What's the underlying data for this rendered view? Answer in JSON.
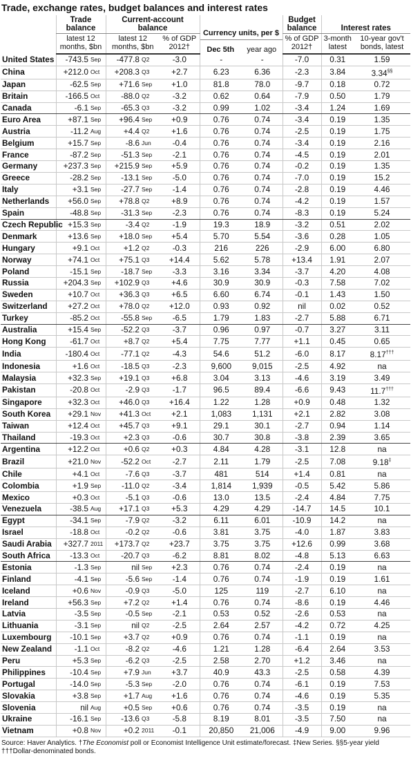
{
  "title": "Trade, exchange rates, budget balances and interest rates",
  "header": {
    "trade": "Trade balance",
    "trade_sub": "latest 12 months, $bn",
    "ca": "Current-account balance",
    "ca_sub": "latest 12 months, $bn",
    "ca_gdp": "% of GDP 2012†",
    "currency": "Currency units, per $",
    "cur_now": "Dec 5th",
    "cur_ago": "year ago",
    "budget": "Budget balance",
    "budget_sub": "% of GDP 2012†",
    "interest": "Interest rates",
    "r3": "3-month latest",
    "r10": "10-year gov't bonds, latest"
  },
  "table": {
    "groups": [
      {
        "rows": [
          [
            "United States",
            "-743.5",
            "Sep",
            "-477.8",
            "Q2",
            "-3.0",
            "-",
            "-",
            "-7.0",
            "0.31",
            "1.59"
          ],
          [
            "China",
            "+212.0",
            "Oct",
            "+208.3",
            "Q3",
            "+2.7",
            "6.23",
            "6.36",
            "-2.3",
            "3.84",
            "3.34§§"
          ],
          [
            "Japan",
            "-62.5",
            "Sep",
            "+71.6",
            "Sep",
            "+1.0",
            "81.8",
            "78.0",
            "-9.7",
            "0.18",
            "0.72"
          ],
          [
            "Britain",
            "-166.5",
            "Oct",
            "-88.0",
            "Q2",
            "-3.2",
            "0.62",
            "0.64",
            "-7.9",
            "0.50",
            "1.79"
          ],
          [
            "Canada",
            "-6.1",
            "Sep",
            "-65.3",
            "Q3",
            "-3.2",
            "0.99",
            "1.02",
            "-3.4",
            "1.24",
            "1.69"
          ]
        ]
      },
      {
        "rows": [
          [
            "Euro Area",
            "+87.1",
            "Sep",
            "+96.4",
            "Sep",
            "+0.9",
            "0.76",
            "0.74",
            "-3.4",
            "0.19",
            "1.35"
          ],
          [
            "Austria",
            "-11.2",
            "Aug",
            "+4.4",
            "Q2",
            "+1.6",
            "0.76",
            "0.74",
            "-2.5",
            "0.19",
            "1.75"
          ],
          [
            "Belgium",
            "+15.7",
            "Sep",
            "-8.6",
            "Jun",
            "-0.4",
            "0.76",
            "0.74",
            "-3.4",
            "0.19",
            "2.16"
          ],
          [
            "France",
            "-87.2",
            "Sep",
            "-51.3",
            "Sep",
            "-2.1",
            "0.76",
            "0.74",
            "-4.5",
            "0.19",
            "2.01"
          ],
          [
            "Germany",
            "+237.3",
            "Sep",
            "+215.9",
            "Sep",
            "+5.9",
            "0.76",
            "0.74",
            "-0.2",
            "0.19",
            "1.35"
          ],
          [
            "Greece",
            "-28.2",
            "Sep",
            "-13.1",
            "Sep",
            "-5.0",
            "0.76",
            "0.74",
            "-7.0",
            "0.19",
            "15.2"
          ],
          [
            "Italy",
            "+3.1",
            "Sep",
            "-27.7",
            "Sep",
            "-1.4",
            "0.76",
            "0.74",
            "-2.8",
            "0.19",
            "4.46"
          ],
          [
            "Netherlands",
            "+56.0",
            "Sep",
            "+78.8",
            "Q2",
            "+8.9",
            "0.76",
            "0.74",
            "-4.2",
            "0.19",
            "1.57"
          ],
          [
            "Spain",
            "-48.8",
            "Sep",
            "-31.3",
            "Sep",
            "-2.3",
            "0.76",
            "0.74",
            "-8.3",
            "0.19",
            "5.24"
          ]
        ]
      },
      {
        "rows": [
          [
            "Czech Republic",
            "+15.3",
            "Sep",
            "-3.4",
            "Q2",
            "-1.9",
            "19.3",
            "18.9",
            "-3.2",
            "0.51",
            "2.02"
          ],
          [
            "Denmark",
            "+13.6",
            "Sep",
            "+18.0",
            "Sep",
            "+5.4",
            "5.70",
            "5.54",
            "-3.6",
            "0.28",
            "1.05"
          ],
          [
            "Hungary",
            "+9.1",
            "Oct",
            "+1.2",
            "Q2",
            "-0.3",
            "216",
            "226",
            "-2.9",
            "6.00",
            "6.80"
          ],
          [
            "Norway",
            "+74.1",
            "Oct",
            "+75.1",
            "Q3",
            "+14.4",
            "5.62",
            "5.78",
            "+13.4",
            "1.91",
            "2.07"
          ],
          [
            "Poland",
            "-15.1",
            "Sep",
            "-18.7",
            "Sep",
            "-3.3",
            "3.16",
            "3.34",
            "-3.7",
            "4.20",
            "4.08"
          ],
          [
            "Russia",
            "+204.3",
            "Sep",
            "+102.9",
            "Q3",
            "+4.6",
            "30.9",
            "30.9",
            "-0.3",
            "7.58",
            "7.02"
          ],
          [
            "Sweden",
            "+10.7",
            "Oct",
            "+36.3",
            "Q3",
            "+6.5",
            "6.60",
            "6.74",
            "-0.1",
            "1.43",
            "1.50"
          ],
          [
            "Switzerland",
            "+27.2",
            "Oct",
            "+78.0",
            "Q2",
            "+12.0",
            "0.93",
            "0.92",
            "nil",
            "0.02",
            "0.52"
          ],
          [
            "Turkey",
            "-85.2",
            "Oct",
            "-55.8",
            "Sep",
            "-6.5",
            "1.79",
            "1.83",
            "-2.7",
            "5.88",
            "6.71"
          ]
        ]
      },
      {
        "rows": [
          [
            "Australia",
            "+15.4",
            "Sep",
            "-52.2",
            "Q3",
            "-3.7",
            "0.96",
            "0.97",
            "-0.7",
            "3.27",
            "3.11"
          ],
          [
            "Hong Kong",
            "-61.7",
            "Oct",
            "+8.7",
            "Q2",
            "+5.4",
            "7.75",
            "7.77",
            "+1.1",
            "0.45",
            "0.65"
          ],
          [
            "India",
            "-180.4",
            "Oct",
            "-77.1",
            "Q2",
            "-4.3",
            "54.6",
            "51.2",
            "-6.0",
            "8.17",
            "8.17†††"
          ],
          [
            "Indonesia",
            "+1.6",
            "Oct",
            "-18.5",
            "Q3",
            "-2.3",
            "9,600",
            "9,015",
            "-2.5",
            "4.92",
            "na"
          ],
          [
            "Malaysia",
            "+32.3",
            "Sep",
            "+19.1",
            "Q3",
            "+6.8",
            "3.04",
            "3.13",
            "-4.6",
            "3.19",
            "3.49"
          ],
          [
            "Pakistan",
            "-20.8",
            "Oct",
            "-2.9",
            "Q3",
            "-1.7",
            "96.5",
            "89.4",
            "-6.6",
            "9.43",
            "11.7†††"
          ],
          [
            "Singapore",
            "+32.3",
            "Oct",
            "+46.0",
            "Q3",
            "+16.4",
            "1.22",
            "1.28",
            "+0.9",
            "0.48",
            "1.32"
          ],
          [
            "South Korea",
            "+29.1",
            "Nov",
            "+41.3",
            "Oct",
            "+2.1",
            "1,083",
            "1,131",
            "+2.1",
            "2.82",
            "3.08"
          ],
          [
            "Taiwan",
            "+12.4",
            "Oct",
            "+45.7",
            "Q3",
            "+9.1",
            "29.1",
            "30.1",
            "-2.7",
            "0.94",
            "1.14"
          ],
          [
            "Thailand",
            "-19.3",
            "Oct",
            "+2.3",
            "Q3",
            "-0.6",
            "30.7",
            "30.8",
            "-3.8",
            "2.39",
            "3.65"
          ]
        ]
      },
      {
        "rows": [
          [
            "Argentina",
            "+12.2",
            "Oct",
            "+0.6",
            "Q2",
            "+0.3",
            "4.84",
            "4.28",
            "-3.1",
            "12.8",
            "na"
          ],
          [
            "Brazil",
            "+21.0",
            "Nov",
            "-52.2",
            "Oct",
            "-2.7",
            "2.11",
            "1.79",
            "-2.5",
            "7.08",
            "9.18‡"
          ],
          [
            "Chile",
            "+4.1",
            "Oct",
            "-7.6",
            "Q3",
            "-3.7",
            "481",
            "514",
            "+1.4",
            "0.81",
            "na"
          ],
          [
            "Colombia",
            "+1.9",
            "Sep",
            "-11.0",
            "Q2",
            "-3.4",
            "1,814",
            "1,939",
            "-0.5",
            "5.42",
            "5.86"
          ],
          [
            "Mexico",
            "+0.3",
            "Oct",
            "-5.1",
            "Q3",
            "-0.6",
            "13.0",
            "13.5",
            "-2.4",
            "4.84",
            "7.75"
          ],
          [
            "Venezuela",
            "-38.5",
            "Aug",
            "+17.1",
            "Q3",
            "+5.3",
            "4.29",
            "4.29",
            "-14.7",
            "14.5",
            "10.1"
          ]
        ]
      },
      {
        "rows": [
          [
            "Egypt",
            "-34.1",
            "Sep",
            "-7.9",
            "Q2",
            "-3.2",
            "6.11",
            "6.01",
            "-10.9",
            "14.2",
            "na"
          ],
          [
            "Israel",
            "-18.8",
            "Oct",
            "-0.2",
            "Q2",
            "-0.6",
            "3.81",
            "3.75",
            "-4.0",
            "1.87",
            "3.83"
          ],
          [
            "Saudi Arabia",
            "+327.7",
            "2011",
            "+173.7",
            "Q2",
            "+23.7",
            "3.75",
            "3.75",
            "+12.6",
            "0.99",
            "3.68"
          ],
          [
            "South Africa",
            "-13.3",
            "Oct",
            "-20.7",
            "Q3",
            "-6.2",
            "8.81",
            "8.02",
            "-4.8",
            "5.13",
            "6.63"
          ]
        ]
      },
      {
        "rows": [
          [
            "Estonia",
            "-1.3",
            "Sep",
            "nil",
            "Sep",
            "+2.3",
            "0.76",
            "0.74",
            "-2.4",
            "0.19",
            "na"
          ],
          [
            "Finland",
            "-4.1",
            "Sep",
            "-5.6",
            "Sep",
            "-1.4",
            "0.76",
            "0.74",
            "-1.9",
            "0.19",
            "1.61"
          ],
          [
            "Iceland",
            "+0.6",
            "Nov",
            "-0.9",
            "Q3",
            "-5.0",
            "125",
            "119",
            "-2.7",
            "6.10",
            "na"
          ],
          [
            "Ireland",
            "+56.3",
            "Sep",
            "+7.2",
            "Q2",
            "+1.4",
            "0.76",
            "0.74",
            "-8.6",
            "0.19",
            "4.46"
          ],
          [
            "Latvia",
            "-3.5",
            "Sep",
            "-0.5",
            "Sep",
            "-2.1",
            "0.53",
            "0.52",
            "-2.6",
            "0.53",
            "na"
          ],
          [
            "Lithuania",
            "-3.1",
            "Sep",
            "nil",
            "Q2",
            "-2.5",
            "2.64",
            "2.57",
            "-4.2",
            "0.72",
            "4.25"
          ],
          [
            "Luxembourg",
            "-10.1",
            "Sep",
            "+3.7",
            "Q2",
            "+0.9",
            "0.76",
            "0.74",
            "-1.1",
            "0.19",
            "na"
          ],
          [
            "New Zealand",
            "-1.1",
            "Oct",
            "-8.2",
            "Q2",
            "-4.6",
            "1.21",
            "1.28",
            "-6.4",
            "2.64",
            "3.53"
          ],
          [
            "Peru",
            "+5.3",
            "Sep",
            "-6.2",
            "Q3",
            "-2.5",
            "2.58",
            "2.70",
            "+1.2",
            "3.46",
            "na"
          ],
          [
            "Philippines",
            "-10.4",
            "Sep",
            "+7.9",
            "Jun",
            "+3.7",
            "40.9",
            "43.3",
            "-2.5",
            "0.58",
            "4.39"
          ],
          [
            "Portugal",
            "-14.0",
            "Sep",
            "-5.3",
            "Sep",
            "-2.0",
            "0.76",
            "0.74",
            "-6.1",
            "0.19",
            "7.53"
          ],
          [
            "Slovakia",
            "+3.8",
            "Sep",
            "+1.7",
            "Aug",
            "+1.6",
            "0.76",
            "0.74",
            "-4.6",
            "0.19",
            "5.35"
          ],
          [
            "Slovenia",
            "nil",
            "Aug",
            "+0.5",
            "Sep",
            "+0.6",
            "0.76",
            "0.74",
            "-3.5",
            "0.19",
            "na"
          ],
          [
            "Ukraine",
            "-16.1",
            "Sep",
            "-13.6",
            "Q3",
            "-5.8",
            "8.19",
            "8.01",
            "-3.5",
            "7.50",
            "na"
          ],
          [
            "Vietnam",
            "+0.8",
            "Nov",
            "+0.2",
            "2011",
            "-0.1",
            "20,850",
            "21,006",
            "-4.9",
            "9.00",
            "9.96"
          ]
        ]
      }
    ]
  },
  "footer": {
    "line1a": "Source: Haver Analytics. †",
    "line1b": "The Economist",
    "line1c": " poll or Economist Intelligence Unit estimate/forecast. ‡New Series. §§5-year yield",
    "line2": "†††Dollar-denominated bonds."
  }
}
